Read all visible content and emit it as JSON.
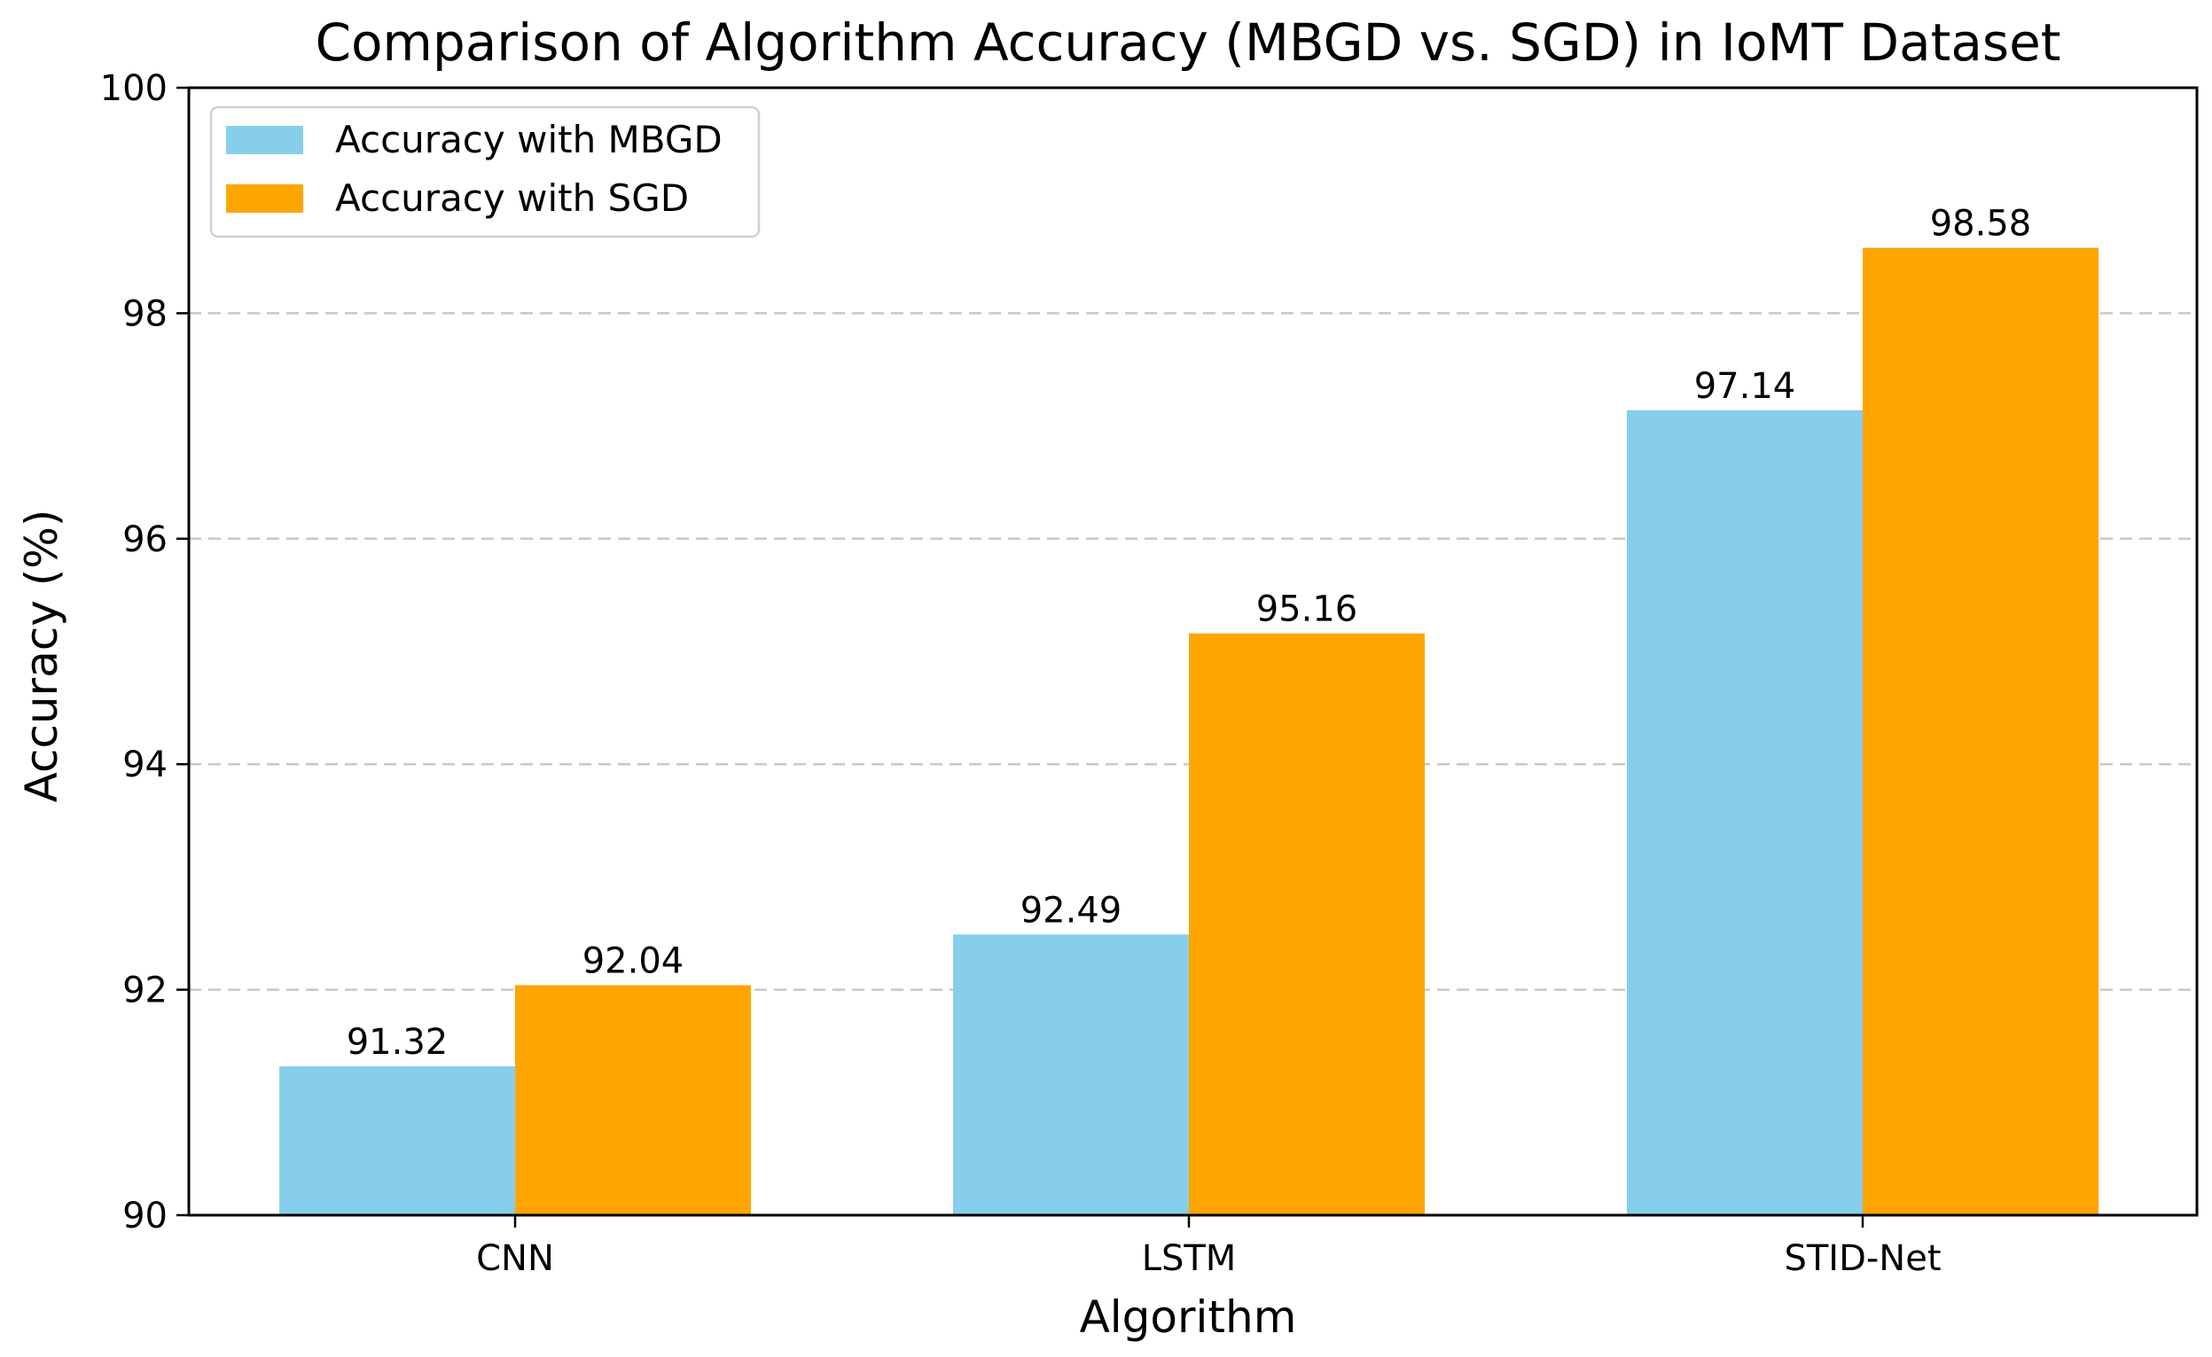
{
  "chart_data": {
    "type": "bar",
    "title": "Comparison of Algorithm Accuracy (MBGD vs. SGD) in IoMT Dataset",
    "xlabel": "Algorithm",
    "ylabel": "Accuracy (%)",
    "ylim": [
      90,
      100
    ],
    "yticks": [
      90,
      92,
      94,
      96,
      98,
      100
    ],
    "grid": "y-dashed",
    "legend_position": "top-left",
    "categories": [
      "CNN",
      "LSTM",
      "STID-Net"
    ],
    "series": [
      {
        "name": "Accuracy with MBGD",
        "color": "#87CEEB",
        "values": [
          91.32,
          92.49,
          97.14
        ]
      },
      {
        "name": "Accuracy with SGD",
        "color": "#FFA500",
        "values": [
          92.04,
          95.16,
          98.58
        ]
      }
    ]
  }
}
